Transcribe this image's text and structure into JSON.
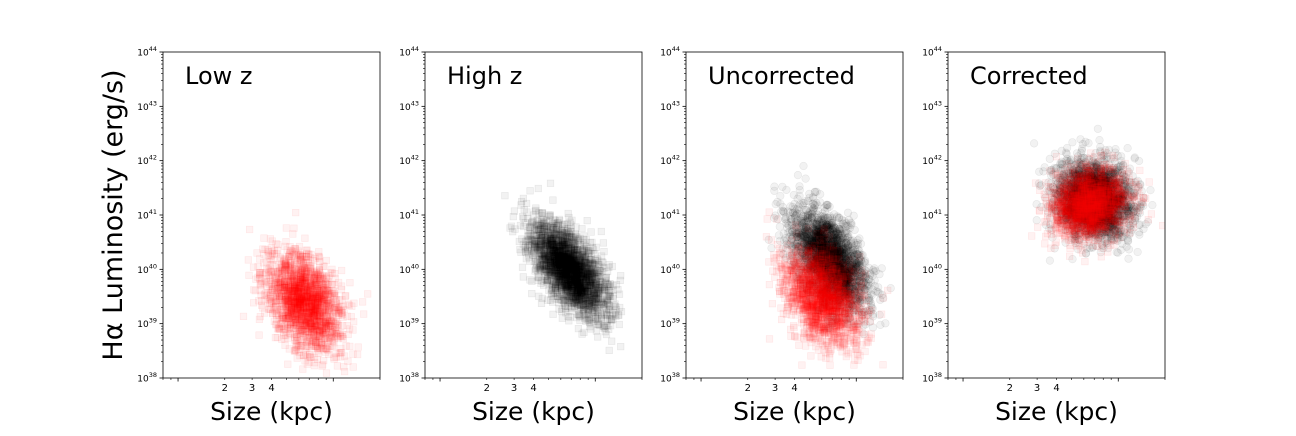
{
  "figure": {
    "ylabel": "Hα Luminosity (erg/s)"
  },
  "colors": {
    "red": "#ff0000",
    "black": "#000000"
  },
  "chart_data": [
    {
      "type": "scatter",
      "title": "Low z",
      "xlabel": "Size (kpc)",
      "xscale": "log",
      "yscale": "log",
      "xlim": [
        0.8,
        20
      ],
      "ylim": [
        1e+38,
        1e+44
      ],
      "xticks": [
        "2",
        "3",
        "4"
      ],
      "yticks": [
        38,
        39,
        40,
        41,
        42,
        43,
        44
      ],
      "series": [
        {
          "color": "#ff0000",
          "marker": "square",
          "alpha": 0.05,
          "count": 1800,
          "center": {
            "size": 6.5,
            "log_lum": 39.4
          },
          "spread": {
            "log_size": 0.12,
            "log_lum": 0.45
          },
          "correlation": -0.35
        }
      ]
    },
    {
      "type": "scatter",
      "title": "High z",
      "xlabel": "Size (kpc)",
      "xscale": "log",
      "yscale": "log",
      "xlim": [
        0.8,
        20
      ],
      "ylim": [
        1e+38,
        1e+44
      ],
      "xticks": [
        "2",
        "3",
        "4"
      ],
      "yticks": [
        38,
        39,
        40,
        41,
        42,
        43,
        44
      ],
      "series": [
        {
          "color": "#000000",
          "marker": "square",
          "alpha": 0.05,
          "count": 2500,
          "center": {
            "size": 6.8,
            "log_lum": 40.0
          },
          "spread": {
            "log_size": 0.12,
            "log_lum": 0.42
          },
          "correlation": -0.6
        }
      ]
    },
    {
      "type": "scatter",
      "title": "Uncorrected",
      "xlabel": "Size (kpc)",
      "xscale": "log",
      "yscale": "log",
      "xlim": [
        0.8,
        20
      ],
      "ylim": [
        1e+38,
        1e+44
      ],
      "xticks": [
        "2",
        "3",
        "4"
      ],
      "yticks": [
        38,
        39,
        40,
        41,
        42,
        43,
        44
      ],
      "series": [
        {
          "color": "#000000",
          "marker": "circle",
          "alpha": 0.05,
          "count": 2500,
          "center": {
            "size": 6.8,
            "log_lum": 40.2
          },
          "spread": {
            "log_size": 0.12,
            "log_lum": 0.45
          },
          "correlation": -0.55
        },
        {
          "color": "#ff0000",
          "marker": "square",
          "alpha": 0.05,
          "count": 1800,
          "center": {
            "size": 6.0,
            "log_lum": 39.5
          },
          "spread": {
            "log_size": 0.12,
            "log_lum": 0.45
          },
          "correlation": -0.35
        }
      ]
    },
    {
      "type": "scatter",
      "title": "Corrected",
      "xlabel": "Size (kpc)",
      "xscale": "log",
      "yscale": "log",
      "xlim": [
        0.8,
        20
      ],
      "ylim": [
        1e+38,
        1e+44
      ],
      "xticks": [
        "2",
        "3",
        "4"
      ],
      "yticks": [
        38,
        39,
        40,
        41,
        42,
        43,
        44
      ],
      "series": [
        {
          "color": "#000000",
          "marker": "circle",
          "alpha": 0.05,
          "count": 2500,
          "center": {
            "size": 7.0,
            "log_lum": 41.3
          },
          "spread": {
            "log_size": 0.12,
            "log_lum": 0.35
          },
          "correlation": -0.15
        },
        {
          "color": "#ff0000",
          "marker": "square",
          "alpha": 0.05,
          "count": 1800,
          "center": {
            "size": 6.5,
            "log_lum": 41.2
          },
          "spread": {
            "log_size": 0.12,
            "log_lum": 0.32
          },
          "correlation": 0.1
        }
      ]
    }
  ]
}
